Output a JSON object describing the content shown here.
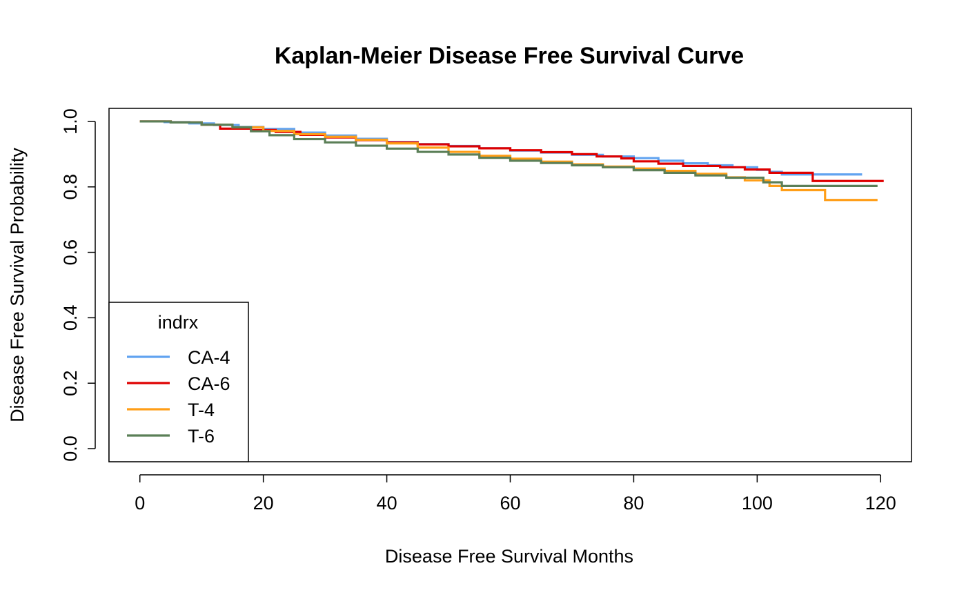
{
  "chart_data": {
    "type": "line",
    "step": true,
    "title": "Kaplan-Meier Disease Free Survival Curve",
    "xlabel": "Disease Free Survival Months",
    "ylabel": "Disease Free Survival Probability",
    "xlim": [
      -5,
      125
    ],
    "ylim": [
      -0.04,
      1.04
    ],
    "xticks": [
      0,
      20,
      40,
      60,
      80,
      100,
      120
    ],
    "yticks": [
      0.0,
      0.2,
      0.4,
      0.6,
      0.8,
      1.0
    ],
    "xtick_labels": [
      "0",
      "20",
      "40",
      "60",
      "80",
      "100",
      "120"
    ],
    "ytick_labels": [
      "0.0",
      "0.2",
      "0.4",
      "0.6",
      "0.8",
      "1.0"
    ],
    "grid": false,
    "legend": {
      "title": "indrx",
      "position": "bottom-left"
    },
    "series": [
      {
        "name": "CA-4",
        "color": "#61A3F0",
        "x": [
          0,
          4,
          8,
          12,
          16,
          20,
          25,
          30,
          35,
          40,
          45,
          50,
          55,
          60,
          65,
          70,
          75,
          80,
          84,
          88,
          92,
          96,
          100,
          102,
          104,
          117
        ],
        "y": [
          1.0,
          0.998,
          0.994,
          0.989,
          0.983,
          0.977,
          0.966,
          0.957,
          0.947,
          0.937,
          0.931,
          0.925,
          0.918,
          0.911,
          0.905,
          0.898,
          0.893,
          0.888,
          0.88,
          0.872,
          0.866,
          0.86,
          0.852,
          0.846,
          0.838,
          0.838
        ]
      },
      {
        "name": "CA-6",
        "color": "#DF0000",
        "x": [
          0,
          5,
          10,
          13,
          18,
          22,
          26,
          30,
          35,
          40,
          45,
          50,
          55,
          60,
          65,
          70,
          74,
          78,
          80,
          84,
          88,
          94,
          98,
          102,
          109,
          120.5
        ],
        "y": [
          1.0,
          0.997,
          0.99,
          0.978,
          0.974,
          0.968,
          0.959,
          0.951,
          0.943,
          0.936,
          0.93,
          0.924,
          0.918,
          0.912,
          0.906,
          0.9,
          0.893,
          0.887,
          0.878,
          0.871,
          0.864,
          0.86,
          0.853,
          0.843,
          0.818,
          0.818
        ]
      },
      {
        "name": "T-4",
        "color": "#FF9E17",
        "x": [
          0,
          5,
          10,
          15,
          20,
          25,
          30,
          35,
          40,
          45,
          50,
          55,
          60,
          65,
          70,
          75,
          80,
          85,
          90,
          95,
          98,
          102,
          104,
          111,
          119.5
        ],
        "y": [
          1.0,
          0.997,
          0.99,
          0.982,
          0.971,
          0.961,
          0.953,
          0.944,
          0.933,
          0.92,
          0.907,
          0.895,
          0.886,
          0.877,
          0.869,
          0.862,
          0.856,
          0.849,
          0.84,
          0.829,
          0.82,
          0.803,
          0.79,
          0.76,
          0.76
        ]
      },
      {
        "name": "T-6",
        "color": "#5B7F57",
        "x": [
          0,
          5,
          10,
          15,
          18,
          21,
          25,
          30,
          35,
          40,
          45,
          50,
          55,
          60,
          65,
          70,
          75,
          80,
          85,
          90,
          95,
          101,
          104,
          119.5
        ],
        "y": [
          1.0,
          0.997,
          0.99,
          0.982,
          0.97,
          0.958,
          0.946,
          0.936,
          0.926,
          0.917,
          0.907,
          0.899,
          0.889,
          0.88,
          0.873,
          0.866,
          0.86,
          0.851,
          0.843,
          0.835,
          0.828,
          0.814,
          0.803,
          0.803
        ]
      }
    ]
  }
}
